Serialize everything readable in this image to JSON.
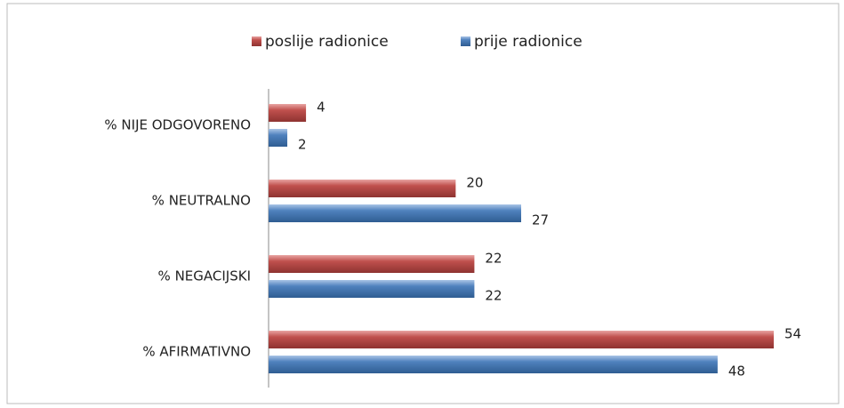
{
  "chart_data": {
    "type": "bar",
    "orientation": "horizontal",
    "categories": [
      "% NIJE ODGOVORENO",
      "% NEUTRALNO",
      "% NEGACIJSKI",
      "% AFIRMATIVNO"
    ],
    "series": [
      {
        "name": "poslije radionice",
        "color": "#c0504d",
        "values": [
          4,
          20,
          22,
          54
        ]
      },
      {
        "name": "prije radionice",
        "color": "#4f81bd",
        "values": [
          2,
          27,
          22,
          48
        ]
      }
    ],
    "legend": "top"
  }
}
